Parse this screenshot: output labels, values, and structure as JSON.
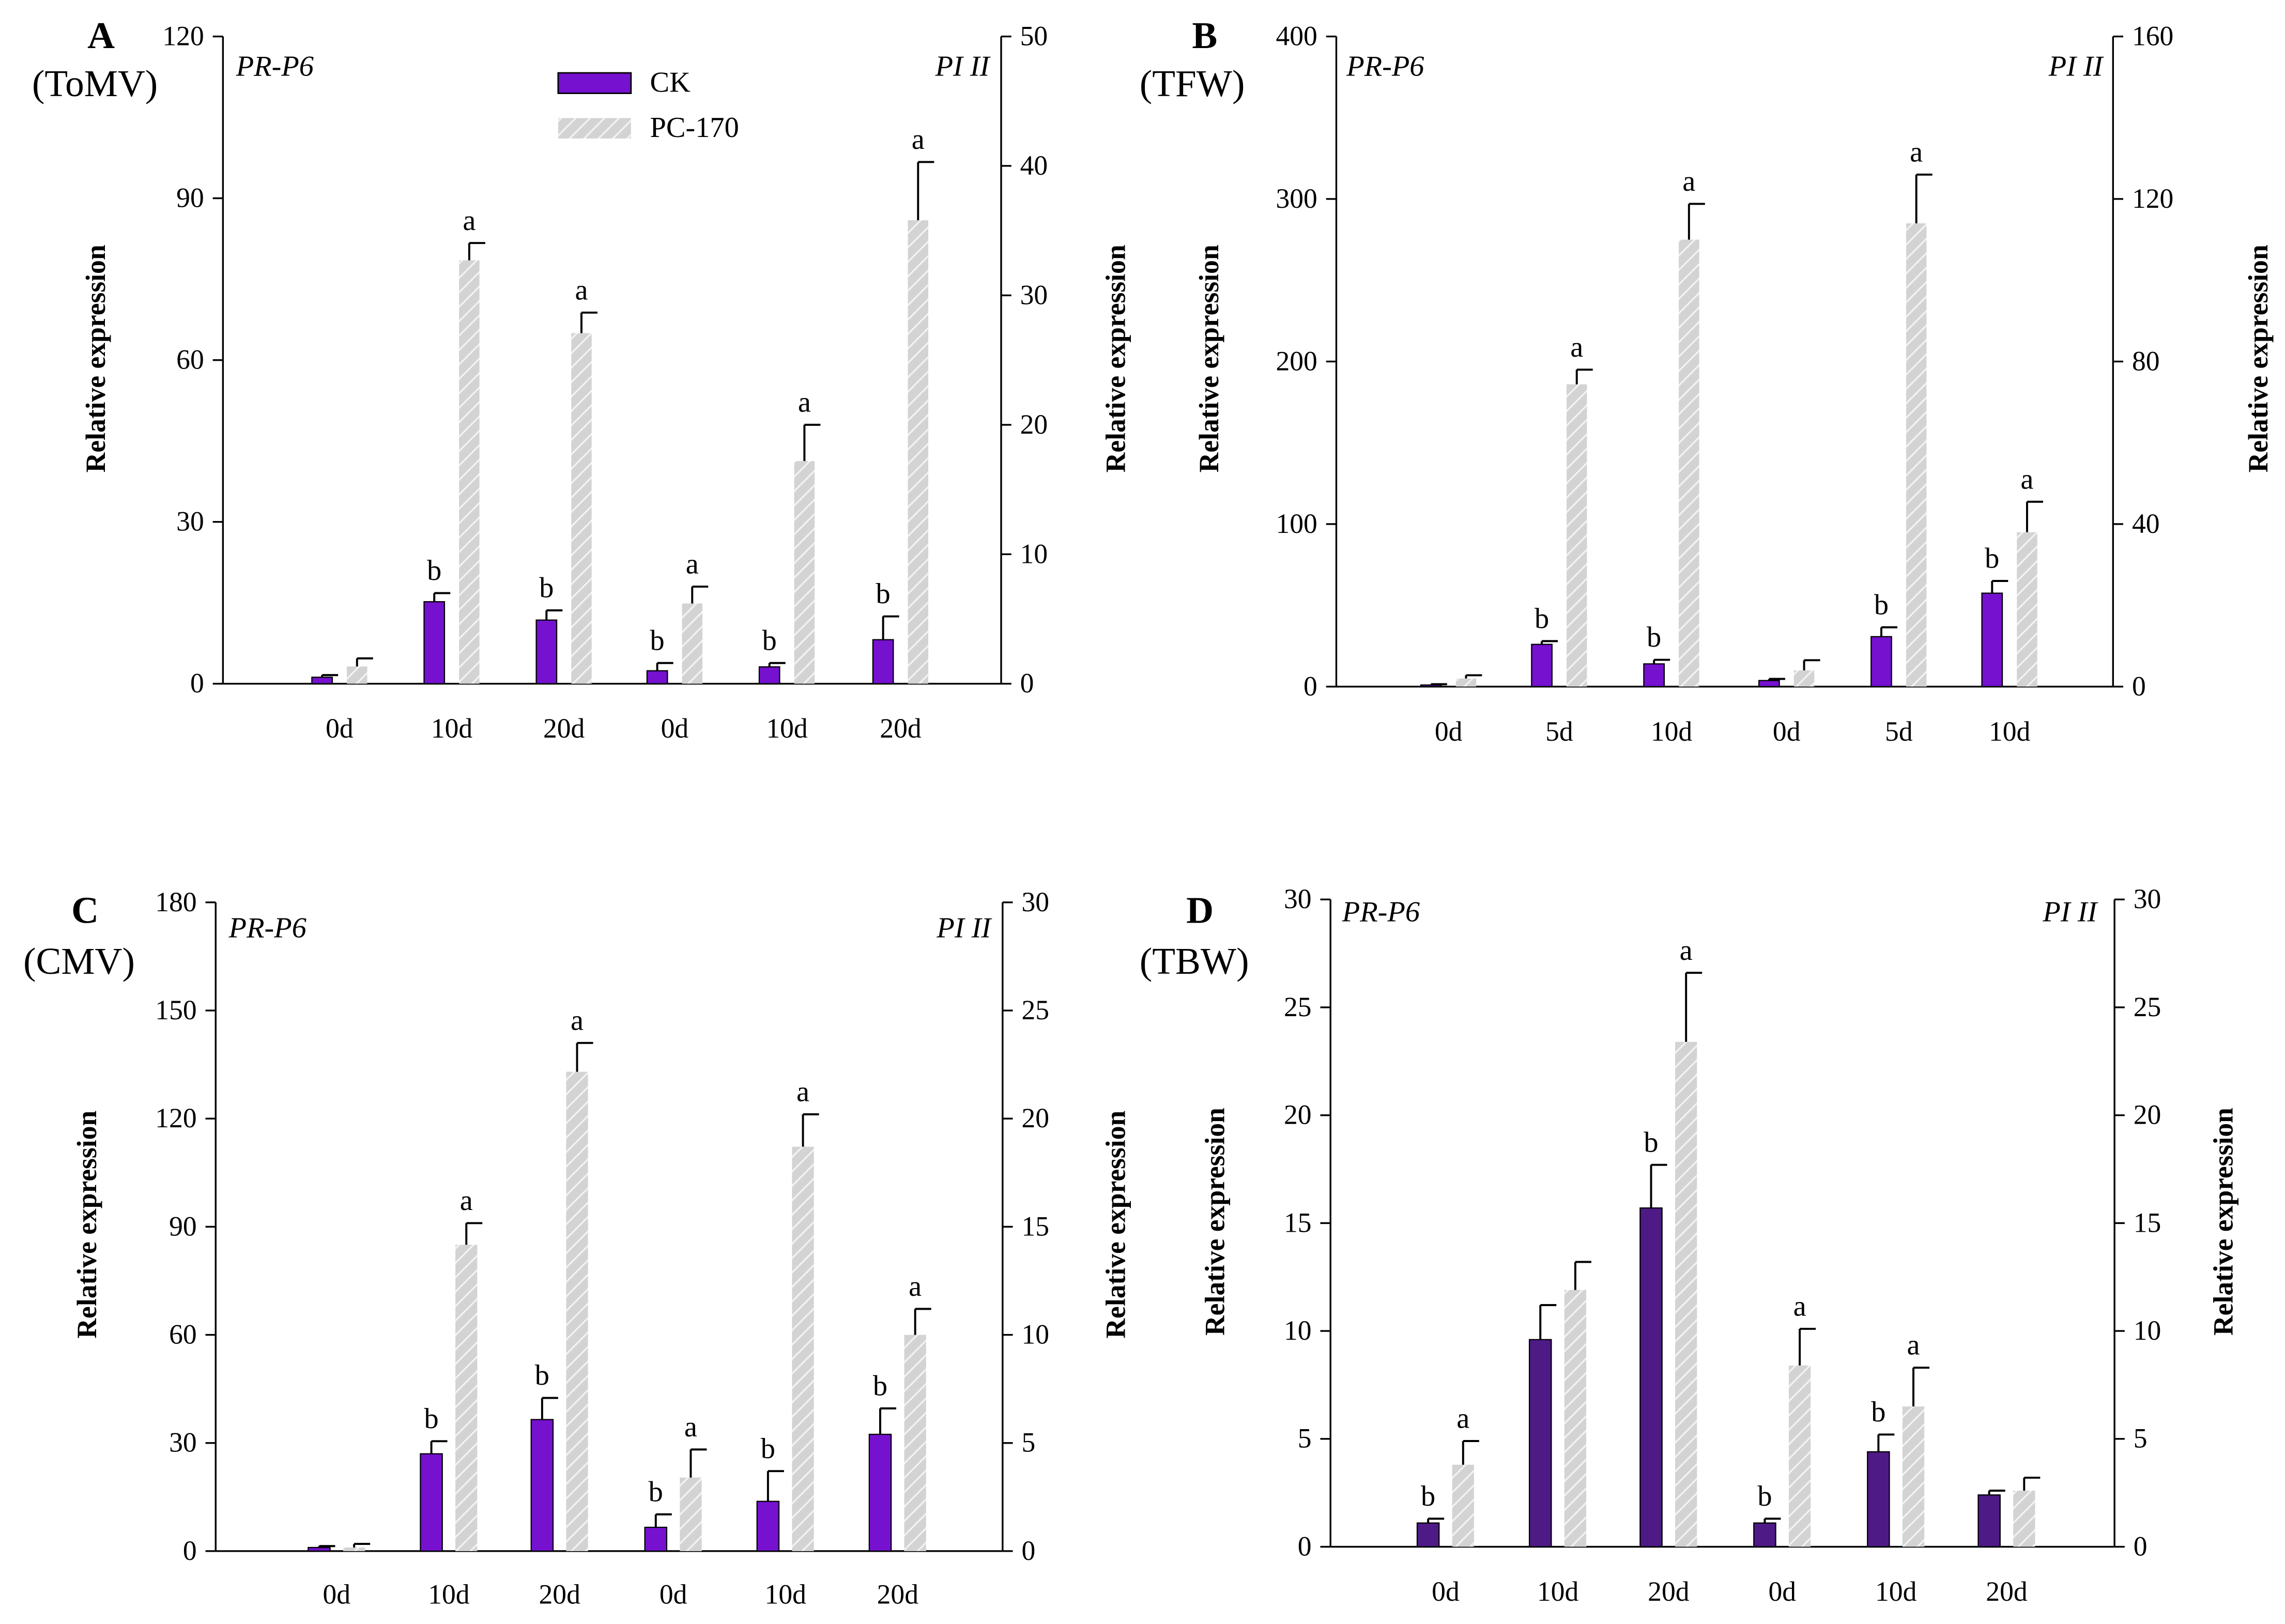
{
  "colors": {
    "ck": "#7511cf",
    "ck_dark": "#4e1a86",
    "pc170": "#d3d3d3",
    "pc170_stripe": "#f2f2f2"
  },
  "legend": {
    "ck": "CK",
    "pc170": "PC-170"
  },
  "chart_data": [
    {
      "type": "bar",
      "panel_letter": "A",
      "virus": "(ToMV)",
      "left_gene": "PR-P6",
      "right_gene": "PI II",
      "ylabel_left": "Relative expression",
      "ylabel_right": "Relative expression",
      "ylim_left": [
        0,
        120
      ],
      "ylim_right": [
        0,
        50
      ],
      "yticks_left": [
        "0",
        "30",
        "60",
        "90",
        "120"
      ],
      "yticks_right": [
        "0",
        "10",
        "20",
        "30",
        "40",
        "50"
      ],
      "categories": [
        "0d",
        "10d",
        "20d",
        "0d",
        "10d",
        "20d"
      ],
      "axis_for_group": [
        "left",
        "left",
        "left",
        "right",
        "right",
        "right"
      ],
      "series": [
        {
          "name": "CK",
          "values": [
            1.2,
            15.2,
            11.8,
            1.0,
            1.3,
            3.4
          ],
          "errors": [
            0.4,
            1.6,
            1.8,
            0.6,
            0.3,
            1.8
          ],
          "labels": [
            "",
            "b",
            "b",
            "b",
            "b",
            "b"
          ]
        },
        {
          "name": "PC-170",
          "values": [
            3.2,
            78.5,
            65.0,
            6.2,
            17.2,
            35.8
          ],
          "errors": [
            1.5,
            3.2,
            3.8,
            1.3,
            2.8,
            4.5
          ],
          "labels": [
            "",
            "a",
            "a",
            "a",
            "a",
            "a"
          ]
        }
      ]
    },
    {
      "type": "bar",
      "panel_letter": "B",
      "virus": "(TFW)",
      "left_gene": "PR-P6",
      "right_gene": "PI II",
      "ylabel_left": "Relative expression",
      "ylabel_right": "Relative expression",
      "ylim_left": [
        0,
        400
      ],
      "ylim_right": [
        0,
        160
      ],
      "yticks_left": [
        "0",
        "100",
        "200",
        "300",
        "400"
      ],
      "yticks_right": [
        "0",
        "40",
        "80",
        "120",
        "160"
      ],
      "categories": [
        "0d",
        "5d",
        "10d",
        "0d",
        "5d",
        "10d"
      ],
      "axis_for_group": [
        "left",
        "left",
        "left",
        "right",
        "right",
        "right"
      ],
      "series": [
        {
          "name": "CK",
          "values": [
            1.0,
            26.0,
            14.0,
            1.5,
            12.3,
            23.0
          ],
          "errors": [
            0.5,
            2.0,
            2.5,
            0.4,
            2.3,
            3.0
          ],
          "labels": [
            "",
            "b",
            "b",
            "",
            "b",
            "b"
          ]
        },
        {
          "name": "PC-170",
          "values": [
            5.0,
            186.0,
            275.0,
            4.0,
            114.0,
            38.0
          ],
          "errors": [
            2.0,
            9.0,
            22.0,
            2.5,
            12.0,
            7.5
          ],
          "labels": [
            "",
            "a",
            "a",
            "",
            "a",
            "a"
          ]
        }
      ]
    },
    {
      "type": "bar",
      "panel_letter": "C",
      "virus": "(CMV)",
      "left_gene": "PR-P6",
      "right_gene": "PI II",
      "ylabel_left": "Relative expression",
      "ylabel_right": "Relative expression",
      "ylim_left": [
        0,
        180
      ],
      "ylim_right": [
        0,
        30
      ],
      "yticks_left": [
        "0",
        "30",
        "60",
        "90",
        "120",
        "150",
        "180"
      ],
      "yticks_right": [
        "0",
        "5",
        "10",
        "15",
        "20",
        "25",
        "30"
      ],
      "categories": [
        "0d",
        "10d",
        "20d",
        "0d",
        "10d",
        "20d"
      ],
      "axis_for_group": [
        "left",
        "left",
        "left",
        "right",
        "right",
        "right"
      ],
      "series": [
        {
          "name": "CK",
          "values": [
            1.0,
            27.0,
            36.5,
            1.1,
            2.3,
            5.4
          ],
          "errors": [
            0.4,
            3.5,
            6.0,
            0.6,
            1.4,
            1.2
          ],
          "labels": [
            "",
            "b",
            "b",
            "b",
            "b",
            "b"
          ]
        },
        {
          "name": "PC-170",
          "values": [
            1.0,
            85.0,
            133.0,
            3.4,
            18.7,
            10.0
          ],
          "errors": [
            1.0,
            6.0,
            8.0,
            1.3,
            1.5,
            1.2
          ],
          "labels": [
            "",
            "a",
            "a",
            "a",
            "a",
            "a"
          ]
        }
      ]
    },
    {
      "type": "bar",
      "panel_letter": "D",
      "virus": "(TBW)",
      "left_gene": "PR-P6",
      "right_gene": "PI II",
      "ylabel_left": "Relative expression",
      "ylabel_right": "Relative expression",
      "ylim_left": [
        0,
        30
      ],
      "ylim_right": [
        0,
        30
      ],
      "yticks_left": [
        "0",
        "5",
        "10",
        "15",
        "20",
        "25",
        "30"
      ],
      "yticks_right": [
        "0",
        "5",
        "10",
        "15",
        "20",
        "25",
        "30"
      ],
      "categories": [
        "0d",
        "10d",
        "20d",
        "0d",
        "10d",
        "20d"
      ],
      "axis_for_group": [
        "left",
        "left",
        "left",
        "right",
        "right",
        "right"
      ],
      "series": [
        {
          "name": "CK",
          "values": [
            1.1,
            9.6,
            15.7,
            1.1,
            4.4,
            2.4
          ],
          "errors": [
            0.2,
            1.6,
            2.0,
            0.2,
            0.8,
            0.2
          ],
          "labels": [
            "b",
            "",
            "b",
            "b",
            "b",
            ""
          ],
          "color": "ck_dark"
        },
        {
          "name": "PC-170",
          "values": [
            3.8,
            11.9,
            23.4,
            8.4,
            6.5,
            2.6
          ],
          "errors": [
            1.1,
            1.3,
            3.2,
            1.7,
            1.8,
            0.6
          ],
          "labels": [
            "a",
            "",
            "a",
            "a",
            "a",
            ""
          ]
        }
      ]
    }
  ]
}
